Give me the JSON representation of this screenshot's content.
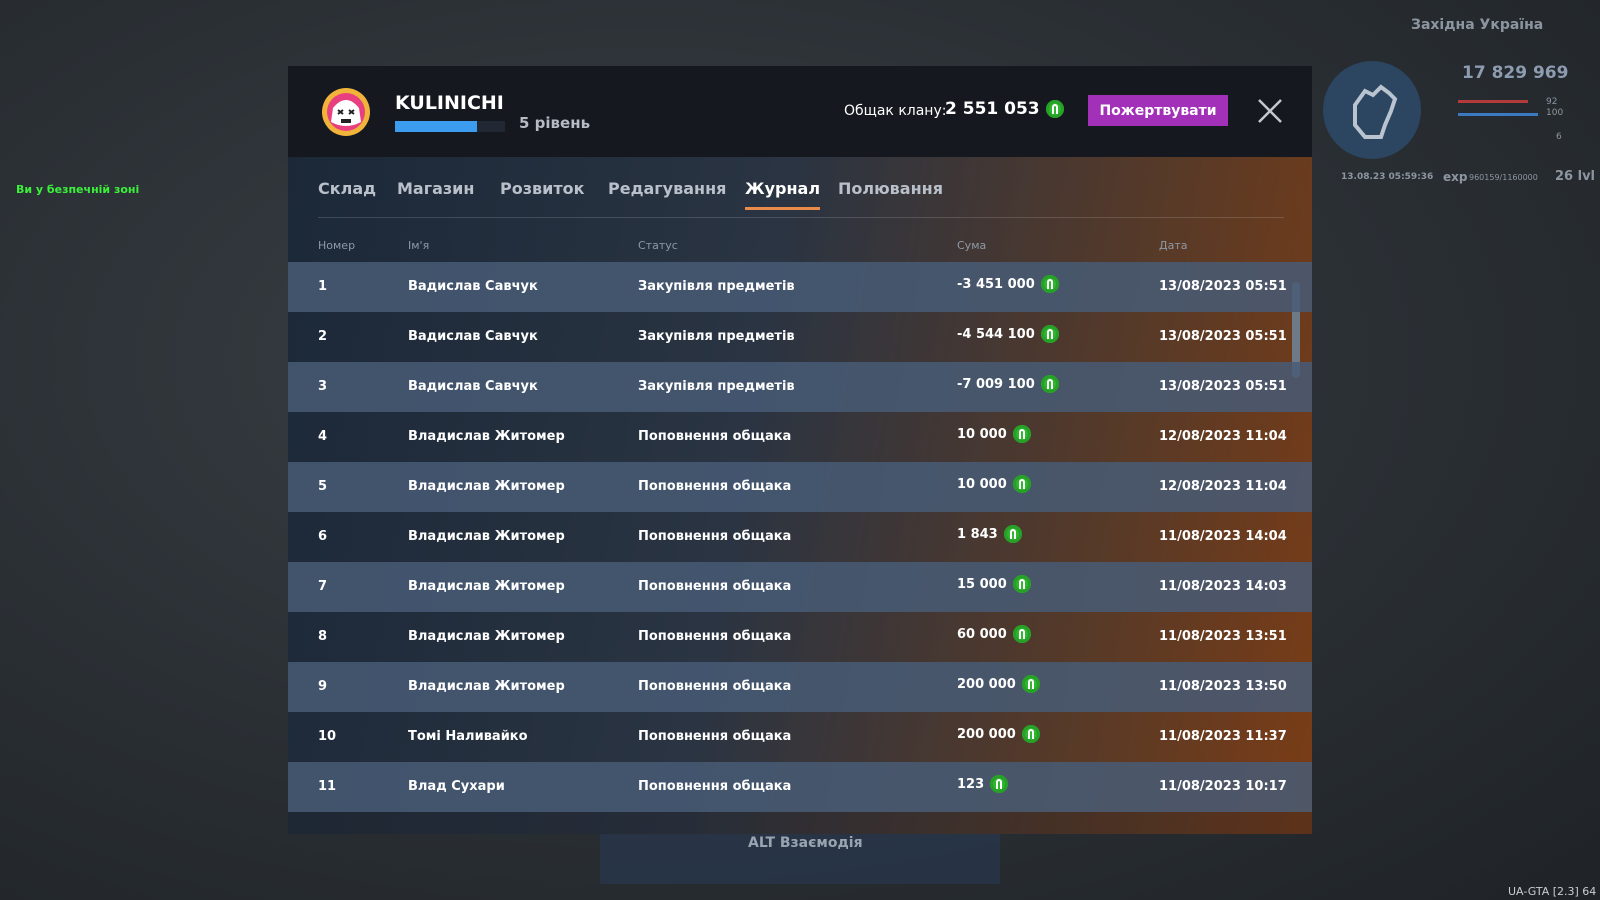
{
  "hud": {
    "safe_zone": "Ви у безпечній зоні",
    "region": "Західна Україна",
    "money": "17 829 969",
    "health": "92",
    "armor": "100",
    "stat": "6",
    "time": "13.08.23 05:59:36",
    "exp_label": "exp",
    "exp_value": "960159/1160000",
    "level": "26 lvl",
    "hint": "ALT Взаємодія",
    "version": "UA-GTA [2.3] 64"
  },
  "header": {
    "clan_name": "KULINICHI",
    "clan_level": "5 рівень",
    "bank_label": "Общак клану:",
    "bank_value": "2 551 053",
    "donate_button": "Пожертвувати"
  },
  "tabs": [
    "Склад",
    "Магазин",
    "Розвиток",
    "Редагування",
    "Журнал",
    "Полювання"
  ],
  "active_tab": 4,
  "table": {
    "columns": [
      "Номер",
      "Ім'я",
      "Статус",
      "Сума",
      "Дата"
    ],
    "rows": [
      [
        "1",
        "Вадислав Савчук",
        "Закупівля предметів",
        "-3 451 000",
        "13/08/2023 05:51"
      ],
      [
        "2",
        "Вадислав Савчук",
        "Закупівля предметів",
        "-4 544 100",
        "13/08/2023 05:51"
      ],
      [
        "3",
        "Вадислав Савчук",
        "Закупівля предметів",
        "-7 009 100",
        "13/08/2023 05:51"
      ],
      [
        "4",
        "Владислав Житомер",
        "Поповнення общака",
        "10 000",
        "12/08/2023 11:04"
      ],
      [
        "5",
        "Владислав Житомер",
        "Поповнення общака",
        "10 000",
        "12/08/2023 11:04"
      ],
      [
        "6",
        "Владислав Житомер",
        "Поповнення общака",
        "1 843",
        "11/08/2023 14:04"
      ],
      [
        "7",
        "Владислав Житомер",
        "Поповнення общака",
        "15 000",
        "11/08/2023 14:03"
      ],
      [
        "8",
        "Владислав Житомер",
        "Поповнення общака",
        "60 000",
        "11/08/2023 13:51"
      ],
      [
        "9",
        "Владислав Житомер",
        "Поповнення общака",
        "200 000",
        "11/08/2023 13:50"
      ],
      [
        "10",
        "Томі Наливайко",
        "Поповнення общака",
        "200 000",
        "11/08/2023 11:37"
      ],
      [
        "11",
        "Влад Сухари",
        "Поповнення общака",
        "123",
        "11/08/2023 10:17"
      ]
    ]
  }
}
